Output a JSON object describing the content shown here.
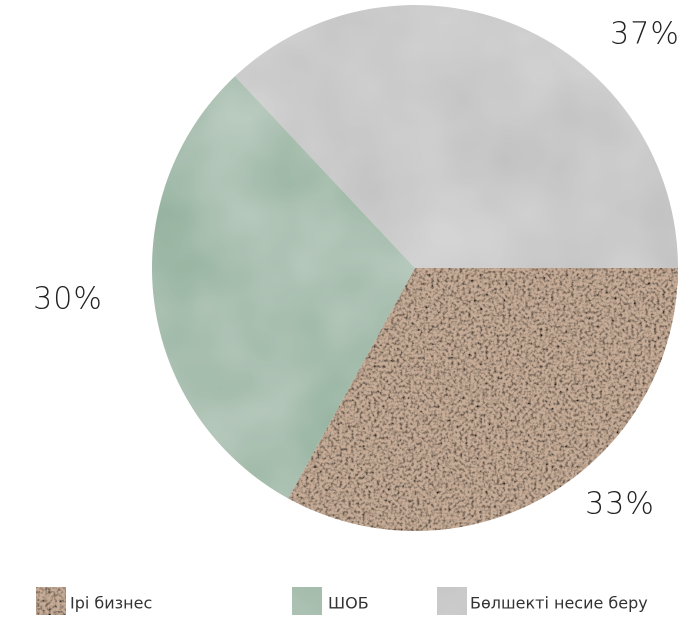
{
  "chart_data": {
    "type": "pie",
    "categories": [
      "Ірі бизнес",
      "ШОБ",
      "Бөлшекті несие беру"
    ],
    "values": [
      33,
      30,
      37
    ],
    "value_labels": [
      "33%",
      "30%",
      "37%"
    ],
    "colors": [
      "#c7ad98",
      "#8eae99",
      "#bdbdbd"
    ]
  }
}
